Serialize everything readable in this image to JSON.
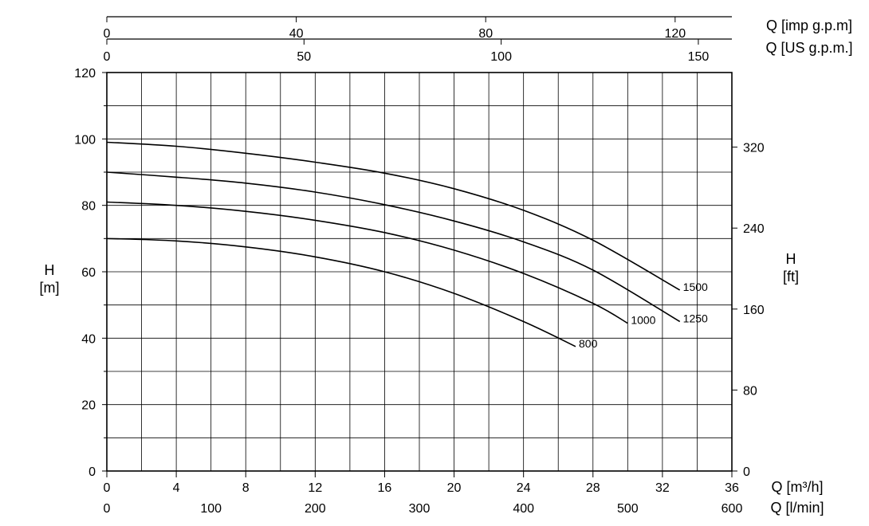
{
  "chart_data": {
    "type": "line",
    "title": "",
    "x_axes": {
      "bottom_primary": {
        "label": "Q [m³/h]",
        "range": [
          0,
          36
        ],
        "ticks": [
          0,
          4,
          8,
          12,
          16,
          20,
          24,
          28,
          32,
          36
        ]
      },
      "bottom_secondary": {
        "label": "Q [l/min]",
        "range": [
          0,
          600
        ],
        "ticks": [
          0,
          100,
          200,
          300,
          400,
          500,
          600
        ]
      },
      "top_imp": {
        "label": "Q [imp g.p.m]",
        "ticks": [
          0,
          40,
          80,
          120
        ]
      },
      "top_us": {
        "label": "Q [US g.p.m.]",
        "ticks": [
          0,
          50,
          100,
          150
        ]
      }
    },
    "y_axes": {
      "left": {
        "label_line1": "H",
        "label_line2": "[m]",
        "range": [
          0,
          120
        ],
        "ticks": [
          0,
          20,
          40,
          60,
          80,
          100,
          120
        ]
      },
      "right": {
        "label_line1": "H",
        "label_line2": "[ft]",
        "ticks": [
          0,
          80,
          160,
          240,
          320
        ]
      }
    },
    "grid": true,
    "series": [
      {
        "name": "1500",
        "x": [
          0,
          4,
          8,
          12,
          16,
          20,
          24,
          28,
          33
        ],
        "y": [
          99,
          97.8,
          95.7,
          93,
          89.7,
          85,
          78.5,
          69.5,
          54.5
        ]
      },
      {
        "name": "1250",
        "x": [
          0,
          4,
          8,
          12,
          16,
          20,
          24,
          28,
          33
        ],
        "y": [
          90,
          88.5,
          86.7,
          84,
          80.2,
          75.3,
          69,
          60.5,
          45
        ]
      },
      {
        "name": "1000",
        "x": [
          0,
          4,
          8,
          12,
          16,
          20,
          24,
          28,
          30
        ],
        "y": [
          81,
          80,
          78.2,
          75.5,
          71.8,
          66.5,
          59.5,
          50.5,
          44.5
        ]
      },
      {
        "name": "800",
        "x": [
          0,
          4,
          8,
          12,
          16,
          20,
          24,
          27
        ],
        "y": [
          70,
          69.3,
          67.5,
          64.5,
          60,
          53.5,
          45,
          37.5
        ]
      }
    ]
  }
}
